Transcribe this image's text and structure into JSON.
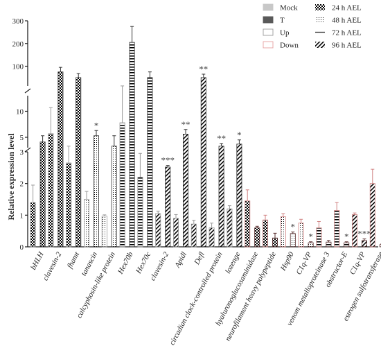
{
  "chart_data": {
    "type": "bar",
    "ylabel": "Relative expression level",
    "y_axis": {
      "broken": true,
      "segments": [
        {
          "range": [
            0,
            3
          ],
          "ticks": [
            0,
            1,
            2,
            3
          ]
        },
        {
          "range": [
            3,
            13
          ],
          "ticks": [
            5,
            10
          ]
        },
        {
          "range": [
            13,
            300
          ],
          "ticks": [
            100,
            200,
            300
          ]
        }
      ]
    },
    "legend": [
      {
        "label": "Mock",
        "kind": "condition",
        "fill": "#c8c8c8",
        "stroke": "#c8c8c8"
      },
      {
        "label": "T",
        "kind": "condition",
        "fill": "#595959",
        "stroke": "#595959"
      },
      {
        "label": "Up",
        "kind": "regulation",
        "fill": "#ffffff",
        "stroke": "#9a9a9a"
      },
      {
        "label": "Down",
        "kind": "regulation",
        "fill": "#ffffff",
        "stroke": "#e6a0a0"
      },
      {
        "label": "24 h AEL",
        "kind": "time",
        "pattern": "checker"
      },
      {
        "label": "48 h AEL",
        "kind": "time",
        "pattern": "dots"
      },
      {
        "label": "72 h AEL",
        "kind": "time",
        "pattern": "hlines"
      },
      {
        "label": "96 h AEL",
        "kind": "time",
        "pattern": "diag"
      }
    ],
    "categories": [
      {
        "label": "bHLH",
        "direction": "up",
        "time": "24 h AEL",
        "mock": 1.4,
        "mock_err": 0.55,
        "treated": 4.1,
        "treated_err": 1.2,
        "sig": ""
      },
      {
        "label": "clavesin-2",
        "direction": "up",
        "time": "24 h AEL",
        "mock": 5.7,
        "mock_err": 5.0,
        "treated": 75,
        "treated_err": 20,
        "sig": ""
      },
      {
        "label": "fhamt",
        "direction": "up",
        "time": "24 h AEL",
        "mock": 2.65,
        "mock_err": 0.65,
        "treated": 50,
        "treated_err": 18,
        "sig": ""
      },
      {
        "label": "tanascin",
        "direction": "up",
        "time": "48 h AEL",
        "mock": 1.5,
        "mock_err": 0.25,
        "treated": 5.3,
        "treated_err": 1.0,
        "sig": "*"
      },
      {
        "label": "calcyphosin-like protein",
        "direction": "up",
        "time": "48 h AEL",
        "mock": 0.97,
        "mock_err": 0.04,
        "treated": 3.3,
        "treated_err": 2.0,
        "sig": ""
      },
      {
        "label": "Hex70b",
        "direction": "up",
        "time": "72 h AEL",
        "mock": 7.8,
        "mock_err": 5.5,
        "treated": 205,
        "treated_err": 70,
        "sig": ""
      },
      {
        "label": "Hex70c",
        "direction": "up",
        "time": "72 h AEL",
        "mock": 2.2,
        "mock_err": 0.75,
        "treated": 50,
        "treated_err": 25,
        "sig": ""
      },
      {
        "label": "clavesin-2",
        "direction": "up",
        "time": "96 h AEL",
        "mock": 1.05,
        "mock_err": 0.08,
        "treated": 2.52,
        "treated_err": 0.05,
        "sig": "***"
      },
      {
        "label": "Apidl",
        "direction": "up",
        "time": "96 h AEL",
        "mock": 0.9,
        "mock_err": 0.12,
        "treated": 5.6,
        "treated_err": 0.9,
        "sig": "**"
      },
      {
        "label": "Defl",
        "direction": "up",
        "time": "96 h AEL",
        "mock": 0.72,
        "mock_err": 0.12,
        "treated": 50,
        "treated_err": 15,
        "sig": "**"
      },
      {
        "label": "circadian clock-controlled protein",
        "direction": "up",
        "time": "96 h AEL",
        "mock": 0.6,
        "mock_err": 0.15,
        "treated": 3.3,
        "treated_err": 0.5,
        "sig": "**"
      },
      {
        "label": "lozenge",
        "direction": "up",
        "time": "96 h AEL",
        "mock": 1.2,
        "mock_err": 0.1,
        "treated": 3.7,
        "treated_err": 0.8,
        "sig": "*"
      },
      {
        "label": "hyaluronoglucosaminidase",
        "direction": "down",
        "time": "24 h AEL",
        "mock": 1.45,
        "mock_err": 0.35,
        "treated": 0.6,
        "treated_err": 0.05,
        "sig": ""
      },
      {
        "label": "neurofilament heavy polypeptide",
        "direction": "down",
        "time": "24 h AEL",
        "mock": 0.85,
        "mock_err": 0.15,
        "treated": 0.28,
        "treated_err": 0.15,
        "sig": ""
      },
      {
        "label": "Hsp90",
        "direction": "down",
        "time": "48 h AEL",
        "mock": 0.95,
        "mock_err": 0.1,
        "treated": 0.42,
        "treated_err": 0.05,
        "sig": "*"
      },
      {
        "label": "C1q-VP",
        "direction": "down",
        "time": "48 h AEL",
        "mock": 0.75,
        "mock_err": 0.12,
        "treated": 0.13,
        "treated_err": 0.03,
        "sig": "*"
      },
      {
        "label": "venom metalloproteinase 3",
        "direction": "down",
        "time": "72 h AEL",
        "mock": 0.6,
        "mock_err": 0.2,
        "treated": 0.15,
        "treated_err": 0.05,
        "sig": ""
      },
      {
        "label": "obstructor-E",
        "direction": "down",
        "time": "72 h AEL",
        "mock": 1.15,
        "mock_err": 0.25,
        "treated": 0.13,
        "treated_err": 0.03,
        "sig": "*"
      },
      {
        "label": "C1q-VP",
        "direction": "down",
        "time": "96 h AEL",
        "mock": 1.02,
        "mock_err": 0.05,
        "treated": 0.2,
        "treated_err": 0.05,
        "sig": "***"
      },
      {
        "label": "estrogen sulfotransferase",
        "direction": "down",
        "time": "96 h AEL",
        "mock": 2.0,
        "mock_err": 0.45,
        "treated": 0.07,
        "treated_err": 0.02,
        "sig": ""
      }
    ]
  }
}
